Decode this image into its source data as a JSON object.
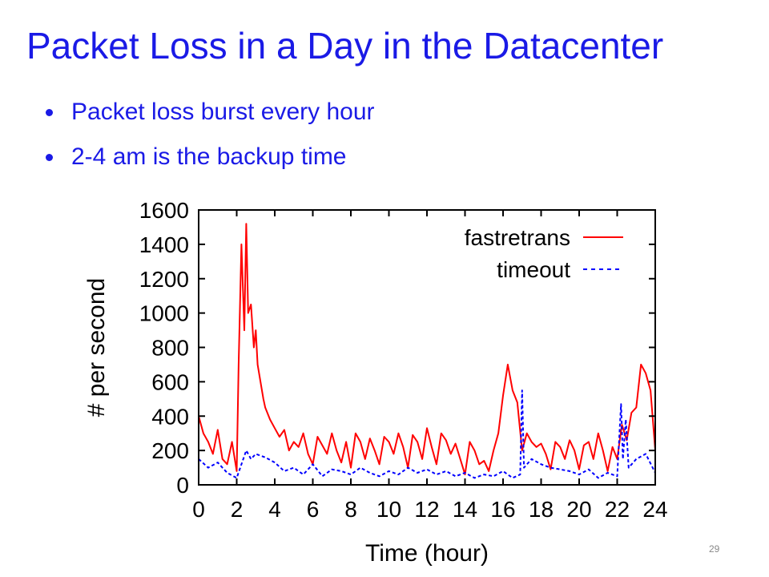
{
  "slide": {
    "title": "Packet Loss in a Day in the Datacenter",
    "bullets": [
      "Packet loss burst every hour",
      "2-4 am is the backup time"
    ],
    "page_number": "29"
  },
  "colors": {
    "title": "#1a1ae6",
    "fastretrans": "#ff0000",
    "timeout": "#0000ff"
  },
  "chart_data": {
    "type": "line",
    "xlabel": "Time (hour)",
    "ylabel": "# per second",
    "xlim": [
      0,
      24
    ],
    "ylim": [
      0,
      1600
    ],
    "xticks": [
      0,
      2,
      4,
      6,
      8,
      10,
      12,
      14,
      16,
      18,
      20,
      22,
      24
    ],
    "yticks": [
      0,
      200,
      400,
      600,
      800,
      1000,
      1200,
      1400,
      1600
    ],
    "legend_position": "top-right",
    "series": [
      {
        "name": "fastretrans",
        "style": "solid",
        "color": "#ff0000",
        "x": [
          0,
          0.25,
          0.5,
          0.75,
          1,
          1.25,
          1.5,
          1.75,
          2,
          2.1,
          2.25,
          2.4,
          2.5,
          2.6,
          2.75,
          2.9,
          3,
          3.1,
          3.25,
          3.4,
          3.5,
          3.75,
          4,
          4.25,
          4.5,
          4.75,
          5,
          5.25,
          5.5,
          5.75,
          6,
          6.25,
          6.5,
          6.75,
          7,
          7.25,
          7.5,
          7.75,
          8,
          8.25,
          8.5,
          8.75,
          9,
          9.25,
          9.5,
          9.75,
          10,
          10.25,
          10.5,
          10.75,
          11,
          11.25,
          11.5,
          11.75,
          12,
          12.25,
          12.5,
          12.75,
          13,
          13.25,
          13.5,
          13.75,
          14,
          14.25,
          14.5,
          14.75,
          15,
          15.25,
          15.5,
          15.75,
          16,
          16.25,
          16.5,
          16.75,
          17,
          17.25,
          17.5,
          17.75,
          18,
          18.25,
          18.5,
          18.75,
          19,
          19.25,
          19.5,
          19.75,
          20,
          20.25,
          20.5,
          20.75,
          21,
          21.25,
          21.5,
          21.75,
          22,
          22.25,
          22.5,
          22.75,
          23,
          23.25,
          23.5,
          23.75,
          24
        ],
        "values": [
          400,
          300,
          250,
          180,
          320,
          150,
          120,
          250,
          80,
          700,
          1400,
          900,
          1520,
          1000,
          1050,
          800,
          900,
          700,
          600,
          500,
          450,
          380,
          330,
          280,
          320,
          200,
          250,
          220,
          300,
          180,
          120,
          280,
          230,
          180,
          300,
          200,
          130,
          250,
          100,
          300,
          250,
          150,
          270,
          200,
          120,
          280,
          250,
          180,
          300,
          220,
          100,
          290,
          250,
          150,
          330,
          220,
          120,
          300,
          260,
          180,
          240,
          150,
          60,
          250,
          200,
          120,
          140,
          80,
          200,
          300,
          520,
          700,
          550,
          480,
          200,
          300,
          250,
          220,
          240,
          180,
          90,
          250,
          220,
          150,
          260,
          200,
          90,
          230,
          250,
          150,
          300,
          200,
          80,
          220,
          150,
          350,
          260,
          420,
          450,
          700,
          650,
          550,
          200
        ]
      },
      {
        "name": "timeout",
        "style": "dashed",
        "color": "#0000ff",
        "x": [
          0,
          0.5,
          1,
          1.5,
          2,
          2.5,
          2.75,
          3,
          3.5,
          4,
          4.5,
          5,
          5.5,
          6,
          6.5,
          7,
          7.5,
          8,
          8.5,
          9,
          9.5,
          10,
          10.5,
          11,
          11.5,
          12,
          12.5,
          13,
          13.5,
          14,
          14.5,
          15,
          15.5,
          16,
          16.5,
          16.9,
          17.0,
          17.1,
          17.5,
          18,
          18.5,
          19,
          19.5,
          20,
          20.5,
          21,
          21.5,
          22,
          22.2,
          22.3,
          22.45,
          22.6,
          23,
          23.5,
          24
        ],
        "values": [
          150,
          100,
          130,
          70,
          40,
          200,
          150,
          180,
          160,
          130,
          80,
          100,
          60,
          120,
          50,
          90,
          80,
          60,
          100,
          70,
          50,
          80,
          60,
          100,
          70,
          90,
          60,
          80,
          50,
          70,
          40,
          60,
          50,
          80,
          40,
          60,
          550,
          100,
          150,
          120,
          100,
          90,
          80,
          60,
          90,
          40,
          70,
          50,
          470,
          150,
          380,
          100,
          150,
          180,
          70
        ]
      }
    ]
  }
}
